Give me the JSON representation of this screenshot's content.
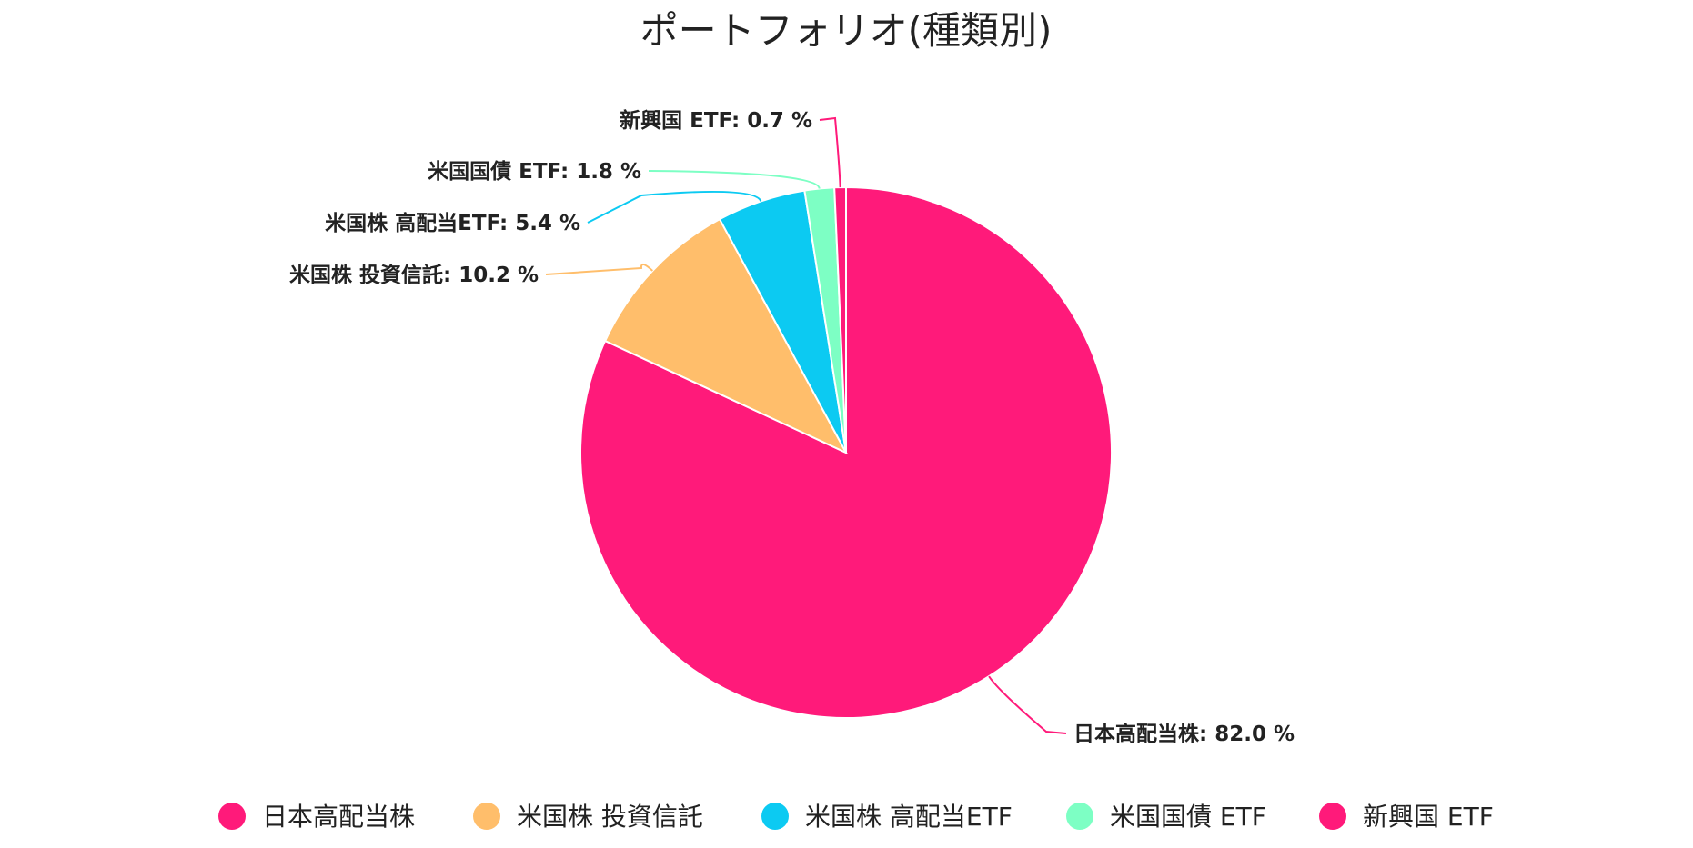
{
  "chart_data": {
    "type": "pie",
    "title": "ポートフォリオ(種類別)",
    "slices": [
      {
        "name": "日本高配当株",
        "value": 82.0,
        "label": "日本高配当株: 82.0 %",
        "color": "#ff1a7a"
      },
      {
        "name": "米国株 投資信託",
        "value": 10.2,
        "label": "米国株 投資信託: 10.2 %",
        "color": "#ffbe6b"
      },
      {
        "name": "米国株 高配当ETF",
        "value": 5.4,
        "label": "米国株 高配当ETF: 5.4 %",
        "color": "#0ccaf2"
      },
      {
        "name": "米国国債 ETF",
        "value": 1.8,
        "label": "米国国債 ETF: 1.8 %",
        "color": "#7dffc4"
      },
      {
        "name": "新興国 ETF",
        "value": 0.7,
        "label": "新興国 ETF: 0.7 %",
        "color": "#ff1a7a"
      }
    ],
    "start": "12 o'clock",
    "direction": "clockwise",
    "legend": "bottom",
    "label_lines": true
  }
}
